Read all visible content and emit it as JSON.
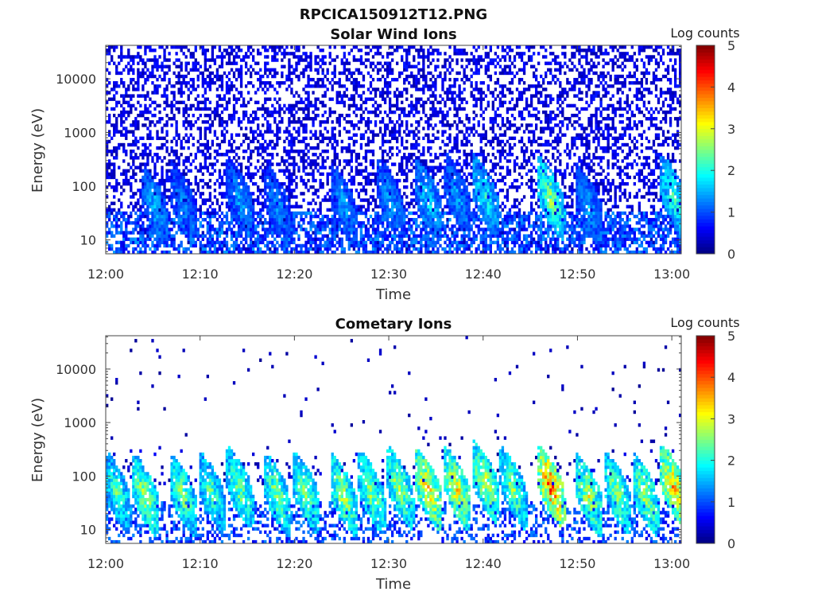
{
  "figure": {
    "title": "RPCICA150912T12.PNG"
  },
  "colors": {
    "colormap": [
      "#00007f",
      "#0000ff",
      "#007fff",
      "#00ffff",
      "#7fff7f",
      "#ffff00",
      "#ff7f00",
      "#ff0000",
      "#7f0000"
    ],
    "background": "#ffffff",
    "frame": "#444444"
  },
  "chart_data": [
    {
      "type": "heatmap",
      "title": "Solar Wind Ions",
      "xlabel": "Time",
      "ylabel": "Energy (eV)",
      "x_ticks": [
        "12:00",
        "12:10",
        "12:20",
        "12:30",
        "12:40",
        "12:50",
        "13:00"
      ],
      "x_range": [
        "12:00",
        "13:01"
      ],
      "y_scale": "log",
      "y_ticks": [
        10,
        100,
        1000,
        10000
      ],
      "y_tick_labels": [
        "10",
        "100",
        "1000",
        "10000"
      ],
      "ylim": [
        5.5,
        42000
      ],
      "colorbar": {
        "label": "Log counts",
        "range": [
          0,
          5
        ],
        "tick_labels": [
          "0",
          "1",
          "2",
          "3",
          "4",
          "5"
        ]
      },
      "description_values": {
        "background_level_log_counts": 0.2,
        "low_energy_peak_log_counts": 2.5
      },
      "bursts": [
        {
          "time": "12:05",
          "energy_eV": 22,
          "peak_log_counts": 1.6
        },
        {
          "time": "12:08",
          "energy_eV": 25,
          "peak_log_counts": 1.4
        },
        {
          "time": "12:14",
          "energy_eV": 30,
          "peak_log_counts": 1.5
        },
        {
          "time": "12:18",
          "energy_eV": 22,
          "peak_log_counts": 1.4
        },
        {
          "time": "12:25",
          "energy_eV": 22,
          "peak_log_counts": 1.5
        },
        {
          "time": "12:30",
          "energy_eV": 28,
          "peak_log_counts": 1.5
        },
        {
          "time": "12:34",
          "energy_eV": 28,
          "peak_log_counts": 1.8
        },
        {
          "time": "12:37",
          "energy_eV": 35,
          "peak_log_counts": 1.5
        },
        {
          "time": "12:40",
          "energy_eV": 35,
          "peak_log_counts": 2.0
        },
        {
          "time": "12:47",
          "energy_eV": 30,
          "peak_log_counts": 2.6
        },
        {
          "time": "12:51",
          "energy_eV": 22,
          "peak_log_counts": 1.5
        },
        {
          "time": "13:00",
          "energy_eV": 32,
          "peak_log_counts": 2.2
        }
      ]
    },
    {
      "type": "heatmap",
      "title": "Cometary Ions",
      "xlabel": "Time",
      "ylabel": "Energy (eV)",
      "x_ticks": [
        "12:00",
        "12:10",
        "12:20",
        "12:30",
        "12:40",
        "12:50",
        "13:00"
      ],
      "x_range": [
        "12:00",
        "13:01"
      ],
      "y_scale": "log",
      "y_ticks": [
        10,
        100,
        1000,
        10000
      ],
      "y_tick_labels": [
        "10",
        "100",
        "1000",
        "10000"
      ],
      "ylim": [
        5.5,
        42000
      ],
      "colorbar": {
        "label": "Log counts",
        "range": [
          0,
          5
        ],
        "tick_labels": [
          "0",
          "1",
          "2",
          "3",
          "4",
          "5"
        ]
      },
      "description_values": {
        "background_level_log_counts": 0.1,
        "low_energy_peak_log_counts": 4.0
      },
      "bursts": [
        {
          "time": "12:01",
          "energy_eV": 25,
          "peak_log_counts": 2.3
        },
        {
          "time": "12:04",
          "energy_eV": 22,
          "peak_log_counts": 2.8
        },
        {
          "time": "12:08",
          "energy_eV": 22,
          "peak_log_counts": 2.6
        },
        {
          "time": "12:11",
          "energy_eV": 25,
          "peak_log_counts": 2.4
        },
        {
          "time": "12:14",
          "energy_eV": 30,
          "peak_log_counts": 2.6
        },
        {
          "time": "12:18",
          "energy_eV": 22,
          "peak_log_counts": 2.7
        },
        {
          "time": "12:21",
          "energy_eV": 25,
          "peak_log_counts": 2.6
        },
        {
          "time": "12:25",
          "energy_eV": 22,
          "peak_log_counts": 2.8
        },
        {
          "time": "12:28",
          "energy_eV": 25,
          "peak_log_counts": 2.7
        },
        {
          "time": "12:31",
          "energy_eV": 30,
          "peak_log_counts": 2.8
        },
        {
          "time": "12:34",
          "energy_eV": 28,
          "peak_log_counts": 3.4
        },
        {
          "time": "12:37",
          "energy_eV": 30,
          "peak_log_counts": 3.2
        },
        {
          "time": "12:40",
          "energy_eV": 40,
          "peak_log_counts": 2.9
        },
        {
          "time": "12:43",
          "energy_eV": 30,
          "peak_log_counts": 2.6
        },
        {
          "time": "12:47",
          "energy_eV": 32,
          "peak_log_counts": 4.0
        },
        {
          "time": "12:51",
          "energy_eV": 22,
          "peak_log_counts": 2.9
        },
        {
          "time": "12:54",
          "energy_eV": 25,
          "peak_log_counts": 2.7
        },
        {
          "time": "12:57",
          "energy_eV": 22,
          "peak_log_counts": 2.8
        },
        {
          "time": "13:00",
          "energy_eV": 32,
          "peak_log_counts": 3.5
        }
      ]
    }
  ]
}
